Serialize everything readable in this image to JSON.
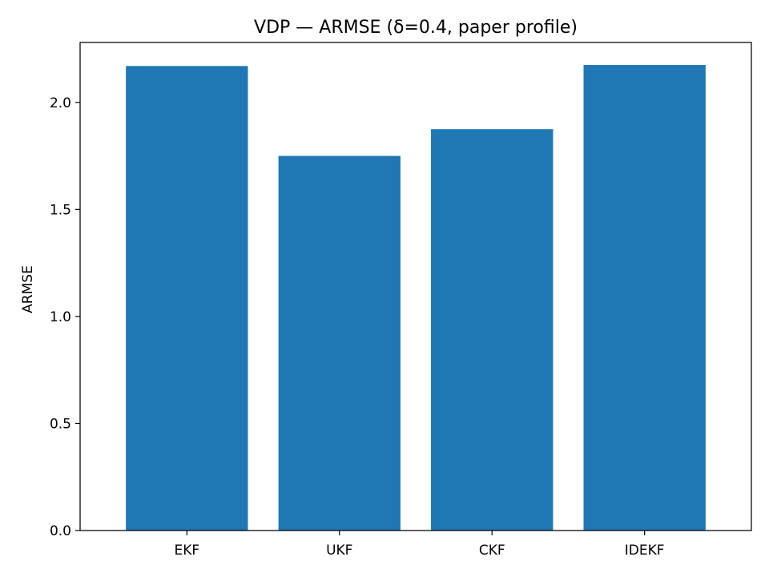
{
  "chart_data": {
    "type": "bar",
    "title": "VDP — ARMSE (δ=0.4, paper profile)",
    "xlabel": "",
    "ylabel": "ARMSE",
    "categories": [
      "EKF",
      "UKF",
      "CKF",
      "IDEKF"
    ],
    "values": [
      2.17,
      1.75,
      1.875,
      2.175
    ],
    "ylim": [
      0,
      2.28
    ],
    "yticks": [
      0.0,
      0.5,
      1.0,
      1.5,
      2.0
    ],
    "ytick_labels": [
      "0.0",
      "0.5",
      "1.0",
      "1.5",
      "2.0"
    ],
    "bar_color": "#1f77b4",
    "grid": false,
    "legend": false
  }
}
